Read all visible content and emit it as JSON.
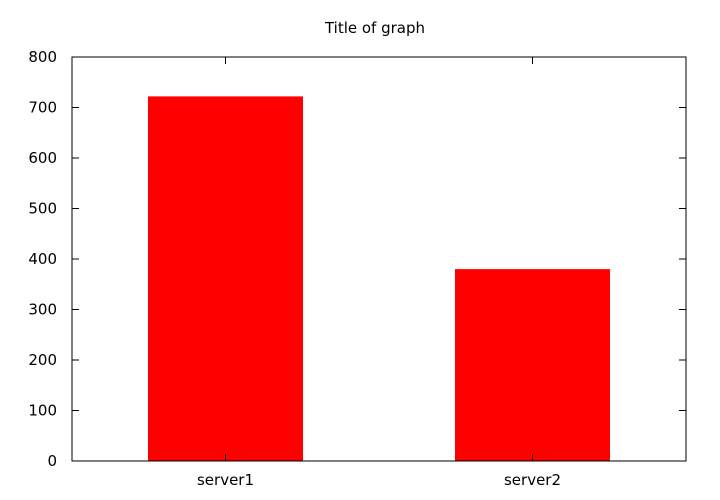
{
  "chart_data": {
    "type": "bar",
    "title": "Title of graph",
    "xlabel": "",
    "ylabel": "",
    "categories": [
      "server1",
      "server2"
    ],
    "values": [
      722,
      380
    ],
    "ylim": [
      0,
      800
    ],
    "yticks": [
      0,
      100,
      200,
      300,
      400,
      500,
      600,
      700,
      800
    ],
    "ytick_labels": [
      "0",
      "100",
      "200",
      "300",
      "400",
      "500",
      "600",
      "700",
      "800"
    ],
    "xtick_labels": [
      "server1",
      "server2"
    ],
    "grid": false,
    "legend": "none",
    "colors": {
      "bar": "#ff0000",
      "axis": "#000000",
      "background": "#ffffff"
    }
  }
}
